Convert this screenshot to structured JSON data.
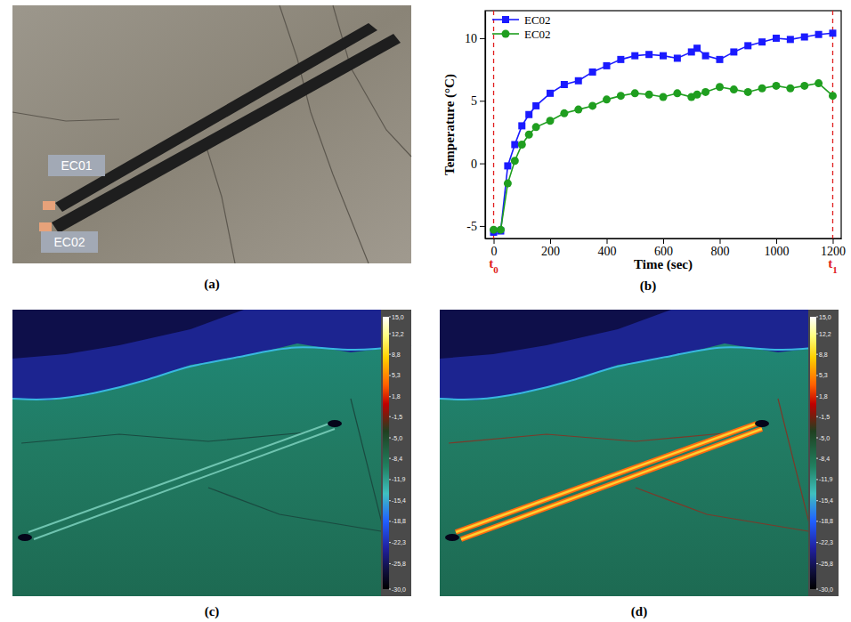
{
  "chart_data": [
    {
      "type": "photo",
      "label": "(a)",
      "annotations": [
        "EC01",
        "EC02"
      ]
    },
    {
      "type": "line",
      "label": "(b)",
      "xlabel": "Time (sec)",
      "ylabel": "Temperature (°C)",
      "x": [
        0,
        25,
        50,
        75,
        100,
        125,
        150,
        200,
        250,
        300,
        350,
        400,
        450,
        500,
        550,
        600,
        650,
        700,
        720,
        750,
        800,
        850,
        900,
        950,
        1000,
        1050,
        1100,
        1150,
        1200
      ],
      "series": [
        {
          "name": "EC02",
          "color": "#1a1aff",
          "marker": "square",
          "line_style": "solid",
          "values": [
            -5.5,
            -5.4,
            -0.2,
            1.5,
            3.0,
            3.9,
            4.6,
            5.6,
            6.3,
            6.6,
            7.3,
            7.8,
            8.3,
            8.6,
            8.7,
            8.6,
            8.4,
            8.9,
            9.2,
            8.6,
            8.3,
            8.9,
            9.4,
            9.7,
            10.0,
            9.9,
            10.1,
            10.3,
            10.4
          ]
        },
        {
          "name": "EC02",
          "color": "#1f9e1f",
          "marker": "circle",
          "line_style": "solid",
          "values": [
            -5.3,
            -5.3,
            -1.6,
            0.2,
            1.5,
            2.3,
            2.9,
            3.4,
            4.0,
            4.3,
            4.6,
            5.1,
            5.4,
            5.6,
            5.5,
            5.3,
            5.6,
            5.3,
            5.5,
            5.7,
            6.1,
            5.9,
            5.7,
            6.0,
            6.2,
            6.0,
            6.2,
            6.4,
            5.4
          ]
        }
      ],
      "xlim": [
        -30,
        1230
      ],
      "ylim": [
        -6,
        12.2
      ],
      "xticks": [
        0,
        200,
        400,
        600,
        800,
        1000,
        1200
      ],
      "yticks": [
        -5,
        0,
        5,
        10
      ],
      "legend": "upper left",
      "annotations": [
        {
          "x": 0,
          "text": "t",
          "sub": "0"
        },
        {
          "x": 1200,
          "text": "t",
          "sub": "1"
        }
      ]
    },
    {
      "type": "thermal",
      "label": "(c)",
      "colorbar": {
        "range": [
          -30,
          15
        ],
        "ticks": [
          {
            "value": 15,
            "label": "15,0"
          },
          {
            "value": 12.2,
            "label": "12,2"
          },
          {
            "value": 8.8,
            "label": "8,8"
          },
          {
            "value": 5.3,
            "label": "5,3"
          },
          {
            "value": 1.8,
            "label": "1,8"
          },
          {
            "value": -1.5,
            "label": "-1,5"
          },
          {
            "value": -5,
            "label": "-5,0"
          },
          {
            "value": -8.4,
            "label": "-8,4"
          },
          {
            "value": -11.9,
            "label": "-11,9"
          },
          {
            "value": -15.4,
            "label": "-15,4"
          },
          {
            "value": -18.8,
            "label": "-18,8"
          },
          {
            "value": -22.3,
            "label": "-22,3"
          },
          {
            "value": -25.8,
            "label": "-25,8"
          },
          {
            "value": -30,
            "label": "-30,0"
          }
        ]
      }
    },
    {
      "type": "thermal",
      "label": "(d)",
      "colorbar": {
        "range": [
          -30,
          15
        ],
        "ticks": [
          {
            "value": 15,
            "label": "15,0"
          },
          {
            "value": 12.2,
            "label": "12,2"
          },
          {
            "value": 8.8,
            "label": "8,8"
          },
          {
            "value": 5.3,
            "label": "5,3"
          },
          {
            "value": 1.8,
            "label": "1,8"
          },
          {
            "value": -1.5,
            "label": "-1,5"
          },
          {
            "value": -5,
            "label": "-5,0"
          },
          {
            "value": -8.4,
            "label": "-8,4"
          },
          {
            "value": -11.9,
            "label": "-11,9"
          },
          {
            "value": -15.4,
            "label": "-15,4"
          },
          {
            "value": -18.8,
            "label": "-18,8"
          },
          {
            "value": -22.3,
            "label": "-22,3"
          },
          {
            "value": -25.8,
            "label": "-25,8"
          },
          {
            "value": -30,
            "label": "-30,0"
          }
        ]
      }
    }
  ]
}
